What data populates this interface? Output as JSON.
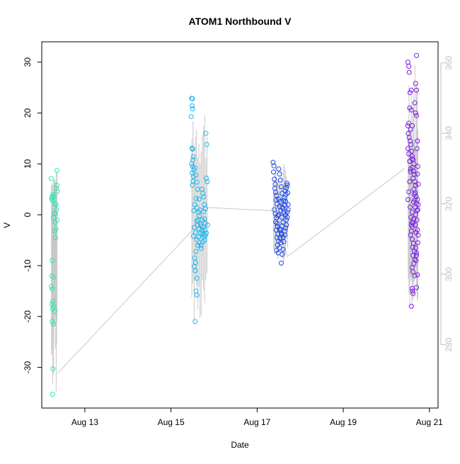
{
  "chart_data": {
    "type": "scatter",
    "title": "ATOM1 Northbound V",
    "xlabel": "Date",
    "ylabel": "V",
    "x_ticks": [
      "Aug 13",
      "Aug 15",
      "Aug 17",
      "Aug 19",
      "Aug 21"
    ],
    "x_tick_values": [
      13,
      15,
      17,
      19,
      21
    ],
    "xlim": [
      12.0,
      21.2
    ],
    "ylim": [
      -38,
      34
    ],
    "y_ticks": [
      -30,
      -20,
      -10,
      0,
      10,
      20,
      30
    ],
    "y2lim": [
      262,
      366
    ],
    "y2_ticks": [
      280,
      300,
      320,
      340,
      360
    ],
    "grid": false,
    "colors": {
      "line": "#c8c8c8",
      "axis": "#000000",
      "right_axis": "#bfbfbf"
    },
    "series": [
      {
        "color": "#2ee6b4",
        "points": [
          [
            12.22,
            7.1
          ],
          [
            12.24,
            3.5
          ],
          [
            12.23,
            3.2
          ],
          [
            12.25,
            2.8
          ],
          [
            12.26,
            4.0
          ],
          [
            12.28,
            3.6
          ],
          [
            12.3,
            2.2
          ],
          [
            12.29,
            0.3
          ],
          [
            12.27,
            -0.6
          ],
          [
            12.31,
            -1.5
          ],
          [
            12.33,
            -2.8
          ],
          [
            12.3,
            -3.2
          ],
          [
            12.32,
            -4.5
          ],
          [
            12.34,
            5.2
          ],
          [
            12.35,
            5.8
          ],
          [
            12.36,
            4.6
          ],
          [
            12.35,
            8.7
          ],
          [
            12.34,
            1.0
          ],
          [
            12.32,
            0.2
          ],
          [
            12.24,
            -9.0
          ],
          [
            12.23,
            -12.0
          ],
          [
            12.27,
            -12.3
          ],
          [
            12.22,
            -14.1
          ],
          [
            12.24,
            -14.6
          ],
          [
            12.26,
            -17.0
          ],
          [
            12.23,
            -17.6
          ],
          [
            12.28,
            -18.0
          ],
          [
            12.25,
            -18.5
          ],
          [
            12.3,
            -19.0
          ],
          [
            12.24,
            -21.0
          ],
          [
            12.27,
            -21.5
          ],
          [
            12.26,
            -30.3
          ],
          [
            12.25,
            -35.3
          ],
          [
            12.33,
            2.0
          ],
          [
            12.36,
            -1.0
          ]
        ]
      },
      {
        "color": "#1ab4ee",
        "points": [
          [
            15.48,
            22.9
          ],
          [
            15.5,
            22.8
          ],
          [
            15.49,
            21.4
          ],
          [
            15.5,
            20.8
          ],
          [
            15.47,
            19.3
          ],
          [
            15.49,
            13.1
          ],
          [
            15.5,
            12.9
          ],
          [
            15.52,
            11.4
          ],
          [
            15.51,
            10.8
          ],
          [
            15.48,
            10.0
          ],
          [
            15.5,
            9.5
          ],
          [
            15.53,
            8.8
          ],
          [
            15.49,
            8.2
          ],
          [
            15.52,
            7.5
          ],
          [
            15.51,
            6.6
          ],
          [
            15.5,
            5.8
          ],
          [
            15.55,
            9.2
          ],
          [
            15.58,
            7.8
          ],
          [
            15.6,
            6.4
          ],
          [
            15.62,
            5.0
          ],
          [
            15.58,
            3.2
          ],
          [
            15.55,
            2.0
          ],
          [
            15.6,
            1.4
          ],
          [
            15.64,
            0.5
          ],
          [
            15.66,
            -0.2
          ],
          [
            15.63,
            -1.0
          ],
          [
            15.68,
            -1.8
          ],
          [
            15.7,
            -2.2
          ],
          [
            15.66,
            -2.8
          ],
          [
            15.72,
            -3.1
          ],
          [
            15.69,
            -3.6
          ],
          [
            15.74,
            -3.9
          ],
          [
            15.64,
            -4.4
          ],
          [
            15.6,
            -4.9
          ],
          [
            15.66,
            -5.5
          ],
          [
            15.62,
            -6.0
          ],
          [
            15.7,
            -6.6
          ],
          [
            15.58,
            -7.2
          ],
          [
            15.55,
            -8.5
          ],
          [
            15.57,
            -9.4
          ],
          [
            15.54,
            -10.2
          ],
          [
            15.56,
            -11.0
          ],
          [
            15.6,
            -12.5
          ],
          [
            15.58,
            -15.0
          ],
          [
            15.6,
            -15.8
          ],
          [
            15.56,
            -21.0
          ],
          [
            15.72,
            5.0
          ],
          [
            15.74,
            4.2
          ],
          [
            15.76,
            3.5
          ],
          [
            15.78,
            2.0
          ],
          [
            15.8,
            1.2
          ],
          [
            15.76,
            0.6
          ],
          [
            15.78,
            -0.8
          ],
          [
            15.8,
            -1.7
          ],
          [
            15.75,
            -2.4
          ],
          [
            15.79,
            -3.0
          ],
          [
            15.82,
            -3.6
          ],
          [
            15.77,
            -4.3
          ],
          [
            15.74,
            -5.3
          ],
          [
            15.7,
            -6.0
          ],
          [
            15.82,
            7.2
          ],
          [
            15.83,
            13.8
          ],
          [
            15.81,
            16.0
          ],
          [
            15.84,
            6.5
          ],
          [
            15.85,
            -2.0
          ],
          [
            15.78,
            -5.0
          ],
          [
            15.8,
            -4.0
          ],
          [
            15.72,
            -1.0
          ],
          [
            15.68,
            0.9
          ],
          [
            15.65,
            3.1
          ],
          [
            15.62,
            -2.0
          ],
          [
            15.6,
            -1.2
          ],
          [
            15.57,
            -3.5
          ],
          [
            15.54,
            -2.5
          ],
          [
            15.52,
            -4.2
          ],
          [
            15.53,
            0.8
          ]
        ]
      },
      {
        "color": "#1a44e6",
        "points": [
          [
            17.37,
            10.3
          ],
          [
            17.39,
            9.6
          ],
          [
            17.38,
            8.4
          ],
          [
            17.4,
            7.0
          ],
          [
            17.42,
            6.0
          ],
          [
            17.41,
            5.2
          ],
          [
            17.43,
            4.4
          ],
          [
            17.45,
            3.8
          ],
          [
            17.44,
            2.9
          ],
          [
            17.46,
            2.1
          ],
          [
            17.4,
            1.0
          ],
          [
            17.42,
            0.2
          ],
          [
            17.45,
            -0.6
          ],
          [
            17.43,
            -1.4
          ],
          [
            17.47,
            -2.3
          ],
          [
            17.44,
            -3.0
          ],
          [
            17.48,
            -3.8
          ],
          [
            17.46,
            -4.5
          ],
          [
            17.5,
            -5.2
          ],
          [
            17.47,
            -6.0
          ],
          [
            17.45,
            -7.0
          ],
          [
            17.49,
            -7.5
          ],
          [
            17.52,
            -6.5
          ],
          [
            17.55,
            -5.5
          ],
          [
            17.53,
            -4.6
          ],
          [
            17.57,
            -3.9
          ],
          [
            17.55,
            -3.0
          ],
          [
            17.58,
            -2.2
          ],
          [
            17.6,
            -1.5
          ],
          [
            17.57,
            -0.5
          ],
          [
            17.62,
            0.4
          ],
          [
            17.6,
            1.2
          ],
          [
            17.64,
            1.9
          ],
          [
            17.66,
            2.6
          ],
          [
            17.63,
            3.3
          ],
          [
            17.67,
            4.0
          ],
          [
            17.65,
            4.7
          ],
          [
            17.68,
            5.3
          ],
          [
            17.7,
            5.8
          ],
          [
            17.69,
            6.2
          ],
          [
            17.71,
            4.3
          ],
          [
            17.72,
            2.0
          ],
          [
            17.7,
            0.5
          ],
          [
            17.68,
            -1.0
          ],
          [
            17.66,
            -2.6
          ],
          [
            17.64,
            -4.0
          ],
          [
            17.62,
            -5.3
          ],
          [
            17.6,
            -6.8
          ],
          [
            17.58,
            -7.8
          ],
          [
            17.56,
            -9.5
          ],
          [
            17.5,
            9.0
          ],
          [
            17.52,
            8.0
          ],
          [
            17.54,
            6.8
          ],
          [
            17.56,
            5.5
          ],
          [
            17.58,
            4.2
          ],
          [
            17.5,
            3.0
          ],
          [
            17.52,
            1.6
          ],
          [
            17.55,
            0.8
          ],
          [
            17.48,
            -0.2
          ],
          [
            17.46,
            -1.7
          ],
          [
            17.52,
            -2.8
          ],
          [
            17.56,
            -3.6
          ],
          [
            17.6,
            -4.4
          ],
          [
            17.64,
            -3.2
          ],
          [
            17.68,
            -2.0
          ],
          [
            17.7,
            -0.5
          ],
          [
            17.72,
            1.0
          ],
          [
            17.66,
            0.0
          ],
          [
            17.62,
            2.8
          ],
          [
            17.58,
            1.5
          ],
          [
            17.54,
            2.6
          ],
          [
            17.5,
            0.0
          ]
        ]
      },
      {
        "color": "#7a1ae6",
        "points": [
          [
            20.5,
            30.0
          ],
          [
            20.52,
            29.2
          ],
          [
            20.53,
            28.0
          ],
          [
            20.55,
            24.0
          ],
          [
            20.54,
            21.0
          ],
          [
            20.58,
            20.6
          ],
          [
            20.6,
            17.5
          ],
          [
            20.56,
            16.8
          ],
          [
            20.52,
            18.0
          ],
          [
            20.5,
            17.5
          ],
          [
            20.51,
            16.0
          ],
          [
            20.53,
            15.2
          ],
          [
            20.55,
            14.5
          ],
          [
            20.57,
            13.8
          ],
          [
            20.59,
            12.5
          ],
          [
            20.6,
            11.5
          ],
          [
            20.62,
            10.8
          ],
          [
            20.64,
            10.0
          ],
          [
            20.61,
            9.3
          ],
          [
            20.63,
            8.6
          ],
          [
            20.65,
            7.9
          ],
          [
            20.62,
            7.2
          ],
          [
            20.66,
            6.5
          ],
          [
            20.68,
            5.8
          ],
          [
            20.64,
            5.0
          ],
          [
            20.67,
            4.3
          ],
          [
            20.69,
            3.6
          ],
          [
            20.66,
            2.9
          ],
          [
            20.7,
            2.2
          ],
          [
            20.67,
            1.5
          ],
          [
            20.71,
            0.8
          ],
          [
            20.68,
            0.0
          ],
          [
            20.64,
            -0.8
          ],
          [
            20.62,
            -1.6
          ],
          [
            20.6,
            -2.4
          ],
          [
            20.58,
            -3.2
          ],
          [
            20.56,
            -4.0
          ],
          [
            20.6,
            -4.8
          ],
          [
            20.63,
            -5.6
          ],
          [
            20.61,
            -6.4
          ],
          [
            20.65,
            -7.2
          ],
          [
            20.62,
            -8.0
          ],
          [
            20.66,
            -8.8
          ],
          [
            20.64,
            -9.6
          ],
          [
            20.6,
            -10.4
          ],
          [
            20.62,
            -11.2
          ],
          [
            20.66,
            -12.0
          ],
          [
            20.6,
            -14.5
          ],
          [
            20.61,
            -15.0
          ],
          [
            20.58,
            -18.0
          ],
          [
            20.62,
            -15.5
          ],
          [
            20.7,
            -14.3
          ],
          [
            20.72,
            -11.8
          ],
          [
            20.7,
            -8.0
          ],
          [
            20.68,
            -6.5
          ],
          [
            20.7,
            31.3
          ],
          [
            20.68,
            25.8
          ],
          [
            20.7,
            24.5
          ],
          [
            20.66,
            22.0
          ],
          [
            20.68,
            20.0
          ],
          [
            20.7,
            19.5
          ],
          [
            20.72,
            14.5
          ],
          [
            20.71,
            13.0
          ],
          [
            20.73,
            9.5
          ],
          [
            20.72,
            8.0
          ],
          [
            20.74,
            6.0
          ],
          [
            20.72,
            3.0
          ],
          [
            20.74,
            2.0
          ],
          [
            20.73,
            1.0
          ],
          [
            20.72,
            -3.0
          ],
          [
            20.74,
            -4.0
          ],
          [
            20.73,
            -5.5
          ],
          [
            20.7,
            -7.5
          ],
          [
            20.69,
            -9.0
          ],
          [
            20.56,
            8.5
          ],
          [
            20.54,
            6.5
          ],
          [
            20.52,
            4.5
          ],
          [
            20.5,
            3.0
          ],
          [
            20.55,
            1.5
          ],
          [
            20.57,
            -0.5
          ],
          [
            20.59,
            -1.5
          ],
          [
            20.58,
            24.5
          ],
          [
            20.6,
            11.0
          ],
          [
            20.5,
            13.0
          ],
          [
            20.52,
            12.0
          ],
          [
            20.54,
            10.5
          ],
          [
            20.56,
            9.0
          ],
          [
            20.58,
            -2.0
          ],
          [
            20.6,
            0.5
          ],
          [
            20.63,
            2.5
          ],
          [
            20.65,
            4.0
          ],
          [
            20.67,
            -2.0
          ],
          [
            20.69,
            -3.5
          ],
          [
            20.71,
            -1.0
          ]
        ]
      }
    ],
    "envelope_line": {
      "x": [
        12.38,
        15.46,
        15.75,
        17.38,
        17.7,
        20.42
      ],
      "y2": [
        272,
        312,
        319,
        318,
        305,
        330
      ]
    },
    "vertical_segments_note": "grey vertical spans drawn behind each cluster"
  }
}
